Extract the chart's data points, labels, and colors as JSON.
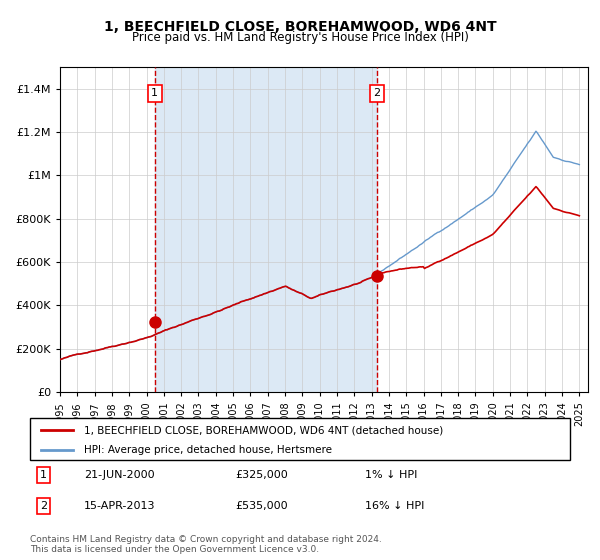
{
  "title": "1, BEECHFIELD CLOSE, BOREHAMWOOD, WD6 4NT",
  "subtitle": "Price paid vs. HM Land Registry's House Price Index (HPI)",
  "legend_line1": "1, BEECHFIELD CLOSE, BOREHAMWOOD, WD6 4NT (detached house)",
  "legend_line2": "HPI: Average price, detached house, Hertsmere",
  "transaction1_date": "21-JUN-2000",
  "transaction1_price": 325000,
  "transaction1_note": "1% ↓ HPI",
  "transaction2_date": "15-APR-2013",
  "transaction2_price": 535000,
  "transaction2_note": "16% ↓ HPI",
  "footnote": "Contains HM Land Registry data © Crown copyright and database right 2024.\nThis data is licensed under the Open Government Licence v3.0.",
  "red_line_color": "#cc0000",
  "blue_line_color": "#6699cc",
  "shading_color": "#dce9f5",
  "dashed_color": "#cc0000",
  "dot_color": "#cc0000",
  "ylim": [
    0,
    1500000
  ],
  "yticks": [
    0,
    200000,
    400000,
    600000,
    800000,
    1000000,
    1200000,
    1400000
  ],
  "start_year": 1995,
  "end_year": 2025,
  "transaction1_year": 2000.47,
  "transaction2_year": 2013.29
}
